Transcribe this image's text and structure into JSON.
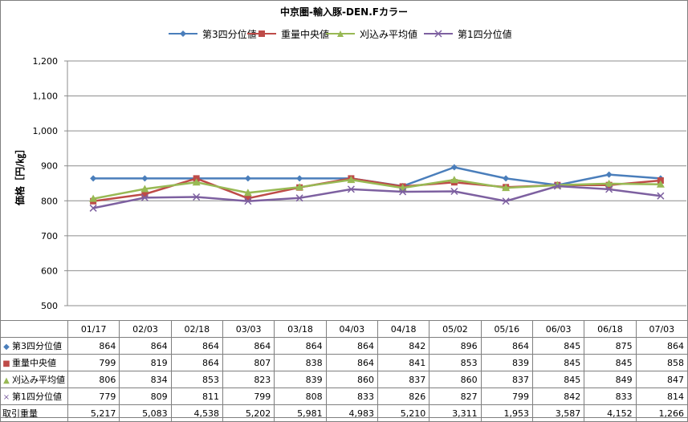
{
  "chart_data": {
    "type": "line",
    "title": "中京圏-輸入豚-DEN.Fカラー",
    "ylabel": "価格［円/㎏］",
    "ylim": [
      500,
      1200
    ],
    "yticks": [
      "500",
      "600",
      "700",
      "800",
      "900",
      "1,000",
      "1,100",
      "1,200"
    ],
    "grid": true,
    "legend": "top",
    "categories": [
      "01/17",
      "02/03",
      "02/18",
      "03/03",
      "03/18",
      "04/03",
      "04/18",
      "05/02",
      "05/16",
      "06/03",
      "06/18",
      "07/03"
    ],
    "series": [
      {
        "name": "第3四分位値",
        "marker": "diamond",
        "color": "#4a7ebb",
        "values": [
          864,
          864,
          864,
          864,
          864,
          864,
          842,
          896,
          864,
          845,
          875,
          864
        ]
      },
      {
        "name": "重量中央値",
        "marker": "square",
        "color": "#be4b48",
        "values": [
          799,
          819,
          864,
          807,
          838,
          864,
          841,
          853,
          839,
          845,
          845,
          858
        ]
      },
      {
        "name": "刈込み平均値",
        "marker": "triangle",
        "color": "#98b954",
        "values": [
          806,
          834,
          853,
          823,
          839,
          860,
          837,
          860,
          837,
          845,
          849,
          847
        ]
      },
      {
        "name": "第1四分位値",
        "marker": "x",
        "color": "#7d60a0",
        "values": [
          779,
          809,
          811,
          799,
          808,
          833,
          826,
          827,
          799,
          842,
          833,
          814
        ]
      }
    ],
    "table_extra": {
      "name": "取引重量",
      "values": [
        "5,217",
        "5,083",
        "4,538",
        "5,202",
        "5,981",
        "4,983",
        "5,210",
        "3,311",
        "1,953",
        "3,587",
        "4,152",
        "1,266"
      ]
    }
  }
}
